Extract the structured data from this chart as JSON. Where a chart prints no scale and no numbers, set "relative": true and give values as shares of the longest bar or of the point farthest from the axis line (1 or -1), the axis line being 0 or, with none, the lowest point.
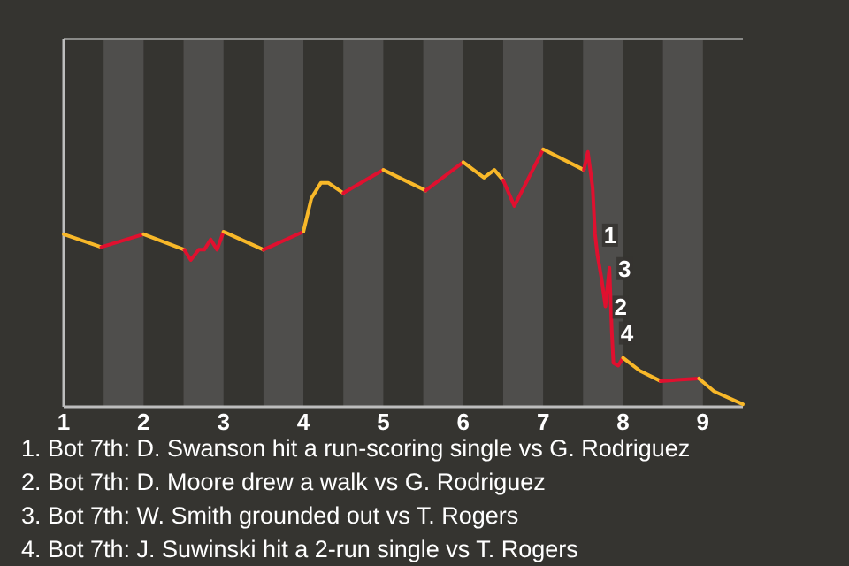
{
  "chart_data": {
    "type": "line",
    "relative": true,
    "xlim": [
      1,
      9.5
    ],
    "xticks": [
      1,
      2,
      3,
      4,
      5,
      6,
      7,
      8,
      9
    ],
    "bands": [
      {
        "axis": "x",
        "from": 1.5,
        "to": 2,
        "color": "#4f4e4c"
      },
      {
        "axis": "x",
        "from": 2.5,
        "to": 3,
        "color": "#4f4e4c"
      },
      {
        "axis": "x",
        "from": 3.5,
        "to": 4,
        "color": "#4f4e4c"
      },
      {
        "axis": "x",
        "from": 4.5,
        "to": 5,
        "color": "#4f4e4c"
      },
      {
        "axis": "x",
        "from": 5.5,
        "to": 6,
        "color": "#4f4e4c"
      },
      {
        "axis": "x",
        "from": 6.5,
        "to": 7,
        "color": "#4f4e4c"
      },
      {
        "axis": "x",
        "from": 7.5,
        "to": 8,
        "color": "#4f4e4c"
      },
      {
        "axis": "x",
        "from": 8.5,
        "to": 9,
        "color": "#4f4e4c"
      }
    ],
    "series": [
      {
        "color": "#f8b829",
        "x": [
          1,
          1.47
        ],
        "values": [
          0.67,
          0.62
        ]
      },
      {
        "color": "#e0102f",
        "x": [
          1.47,
          2
        ],
        "values": [
          0.62,
          0.67
        ]
      },
      {
        "color": "#f8b829",
        "x": [
          2,
          2.51
        ],
        "values": [
          0.67,
          0.61
        ]
      },
      {
        "color": "#e0102f",
        "x": [
          2.51,
          2.59,
          2.69,
          2.76,
          2.84,
          2.92,
          3
        ],
        "values": [
          0.61,
          0.57,
          0.61,
          0.61,
          0.65,
          0.61,
          0.68
        ]
      },
      {
        "color": "#f8b829",
        "x": [
          3,
          3.5
        ],
        "values": [
          0.68,
          0.61
        ]
      },
      {
        "color": "#e0102f",
        "x": [
          3.5,
          4
        ],
        "values": [
          0.61,
          0.68
        ]
      },
      {
        "color": "#f8b829",
        "x": [
          4,
          4.1,
          4.22,
          4.31,
          4.5
        ],
        "values": [
          0.68,
          0.81,
          0.87,
          0.87,
          0.83
        ]
      },
      {
        "color": "#e0102f",
        "x": [
          4.5,
          5
        ],
        "values": [
          0.83,
          0.92
        ]
      },
      {
        "color": "#f8b829",
        "x": [
          5,
          5.53
        ],
        "values": [
          0.92,
          0.84
        ]
      },
      {
        "color": "#e0102f",
        "x": [
          5.53,
          6
        ],
        "values": [
          0.84,
          0.95
        ]
      },
      {
        "color": "#f8b829",
        "x": [
          6,
          6.26,
          6.39,
          6.5
        ],
        "values": [
          0.95,
          0.89,
          0.92,
          0.88
        ]
      },
      {
        "color": "#e0102f",
        "x": [
          6.5,
          6.64,
          7
        ],
        "values": [
          0.88,
          0.78,
          1
        ]
      },
      {
        "color": "#f8b829",
        "x": [
          7,
          7.51
        ],
        "values": [
          1,
          0.92
        ]
      },
      {
        "color": "#e0102f",
        "x": [
          7.51,
          7.56,
          7.62,
          7.65,
          7.68,
          7.73,
          7.78,
          7.83,
          7.86,
          7.88,
          7.94,
          8
        ],
        "values": [
          0.92,
          0.99,
          0.85,
          0.67,
          0.59,
          0.5,
          0.39,
          0.54,
          0.29,
          0.17,
          0.16,
          0.19
        ]
      },
      {
        "color": "#f8b829",
        "x": [
          8,
          8.21,
          8.47
        ],
        "values": [
          0.19,
          0.14,
          0.1
        ]
      },
      {
        "color": "#e0102f",
        "x": [
          8.47,
          8.95
        ],
        "values": [
          0.1,
          0.11
        ]
      },
      {
        "color": "#f8b829",
        "x": [
          8.95,
          9.14,
          9.5
        ],
        "values": [
          0.11,
          0.06,
          0.01
        ]
      }
    ],
    "annotations": [
      {
        "text": "1",
        "x": 7.65,
        "y": 0.67
      },
      {
        "text": "2",
        "x": 7.78,
        "y": 0.39
      },
      {
        "text": "3",
        "x": 7.83,
        "y": 0.54
      },
      {
        "text": "4",
        "x": 7.86,
        "y": 0.29
      },
      "1. Bot 7th: D. Swanson hit a run-scoring single vs G. Rodriguez",
      "2. Bot 7th: D. Moore drew a walk vs G. Rodriguez",
      "3. Bot 7th: W. Smith grounded out vs T. Rogers",
      "4. Bot 7th: J. Suwinski hit a 2-run single vs T. Rogers"
    ]
  }
}
